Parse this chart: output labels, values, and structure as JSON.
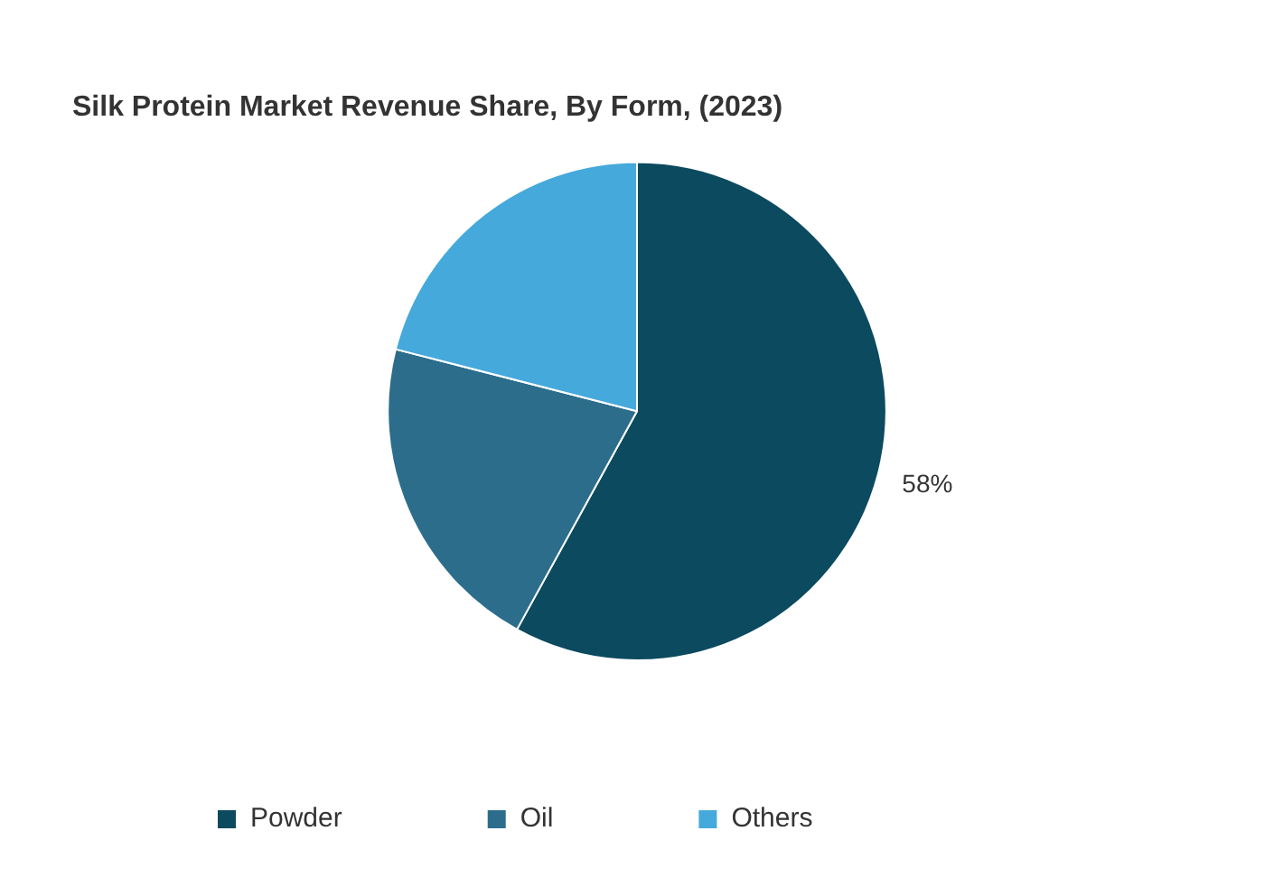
{
  "chart_data": {
    "type": "pie",
    "title": "Silk Protein Market Revenue Share, By Form, (2023)",
    "categories": [
      "Powder",
      "Oil",
      "Others"
    ],
    "values": [
      58,
      21,
      21
    ],
    "colors": [
      "#0b4a5f",
      "#2c6d8c",
      "#45a9dc"
    ],
    "value_labels": [
      "58%",
      null,
      null
    ],
    "legend": "bottom"
  }
}
